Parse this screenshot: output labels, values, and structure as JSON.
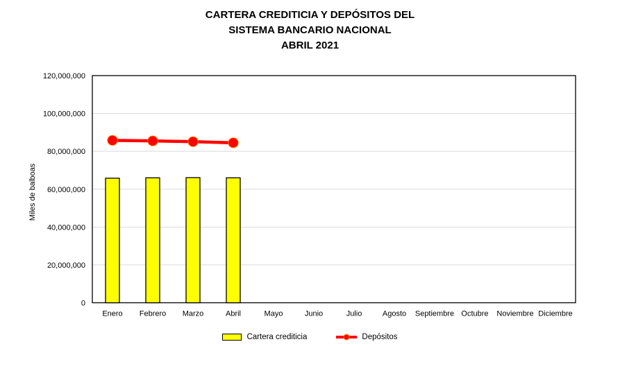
{
  "title": {
    "line1": "CARTERA CREDITICIA Y DEPÓSITOS DEL",
    "line2": "SISTEMA BANCARIO NACIONAL",
    "line3": "ABRIL 2021"
  },
  "legend": {
    "position": "bottom",
    "items": [
      {
        "label": "Cartera crediticia",
        "type": "bar",
        "color": "#ffff00",
        "border_color": "#000000"
      },
      {
        "label": "Depósitos",
        "type": "line",
        "color": "#ff0000"
      }
    ]
  },
  "chart_data": {
    "type": "bar+line",
    "title": "CARTERA CREDITICIA Y DEPÓSITOS DEL SISTEMA BANCARIO NACIONAL ABRIL 2021",
    "xlabel": "",
    "ylabel": "Miles de balboas",
    "categories": [
      "Enero",
      "Febrero",
      "Marzo",
      "Abril",
      "Mayo",
      "Junio",
      "Julio",
      "Agosto",
      "Septiembre",
      "Octubre",
      "Noviembre",
      "Diciembre"
    ],
    "series": [
      {
        "name": "Cartera crediticia",
        "type": "bar",
        "color": "#ffff00",
        "border_color": "#000000",
        "values": [
          65800000,
          66000000,
          66100000,
          66000000,
          null,
          null,
          null,
          null,
          null,
          null,
          null,
          null
        ]
      },
      {
        "name": "Depósitos",
        "type": "line",
        "color": "#ff0000",
        "marker": "circle",
        "marker_border_color": "#ff8c00",
        "values": [
          85800000,
          85500000,
          85100000,
          84500000,
          null,
          null,
          null,
          null,
          null,
          null,
          null,
          null
        ]
      }
    ],
    "ylim": [
      0,
      120000000
    ],
    "ytick_step": 20000000,
    "ytick_labels": [
      "0",
      "20,000,000",
      "40,000,000",
      "60,000,000",
      "80,000,000",
      "100,000,000",
      "120,000,000"
    ],
    "grid": "horizontal-major",
    "gridline_color": "#d9d9d9",
    "axis_border_color": "#000000",
    "plot_background": "#ffffff",
    "legend_position": "bottom"
  }
}
